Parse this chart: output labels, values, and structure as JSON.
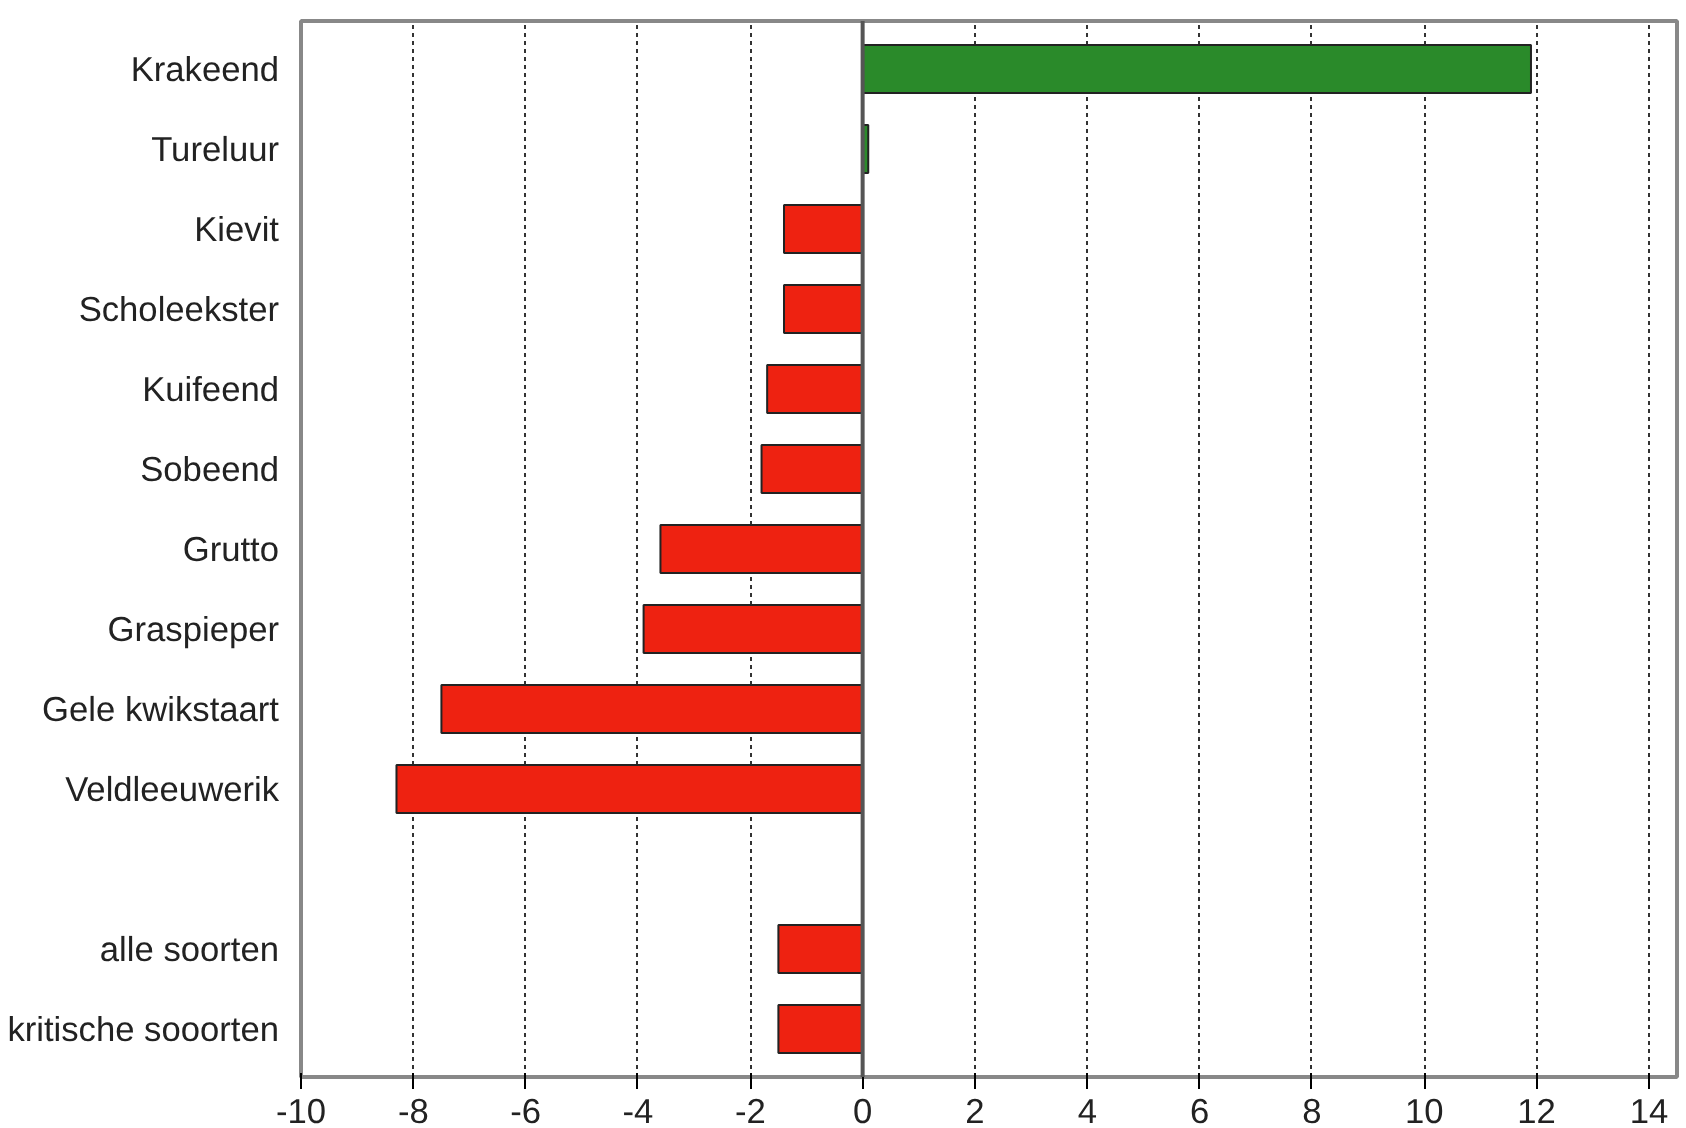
{
  "chart_data": {
    "type": "bar",
    "orientation": "horizontal",
    "categories": [
      "Krakeend",
      "Tureluur",
      "Kievit",
      "Scholeekster",
      "Kuifeend",
      "Sobeend",
      "Grutto",
      "Graspieper",
      "Gele kwikstaart",
      "Veldleeuwerik",
      null,
      "alle soorten",
      "kritische sooorten"
    ],
    "values": [
      11.9,
      0.1,
      -1.4,
      -1.4,
      -1.7,
      -1.8,
      -3.6,
      -3.9,
      -7.5,
      -8.3,
      null,
      -1.5,
      -1.5
    ],
    "colors": [
      "#2a8a2a",
      "#2a8a2a",
      "#ee2211",
      "#ee2211",
      "#ee2211",
      "#ee2211",
      "#ee2211",
      "#ee2211",
      "#ee2211",
      "#ee2211",
      "#ee2211",
      "#ee2211",
      "#ee2211"
    ],
    "xlim": [
      -10,
      14.5
    ],
    "xticks": [
      -10,
      -8,
      -6,
      -4,
      -2,
      0,
      2,
      4,
      6,
      8,
      10,
      12,
      14
    ],
    "grid": "x"
  }
}
